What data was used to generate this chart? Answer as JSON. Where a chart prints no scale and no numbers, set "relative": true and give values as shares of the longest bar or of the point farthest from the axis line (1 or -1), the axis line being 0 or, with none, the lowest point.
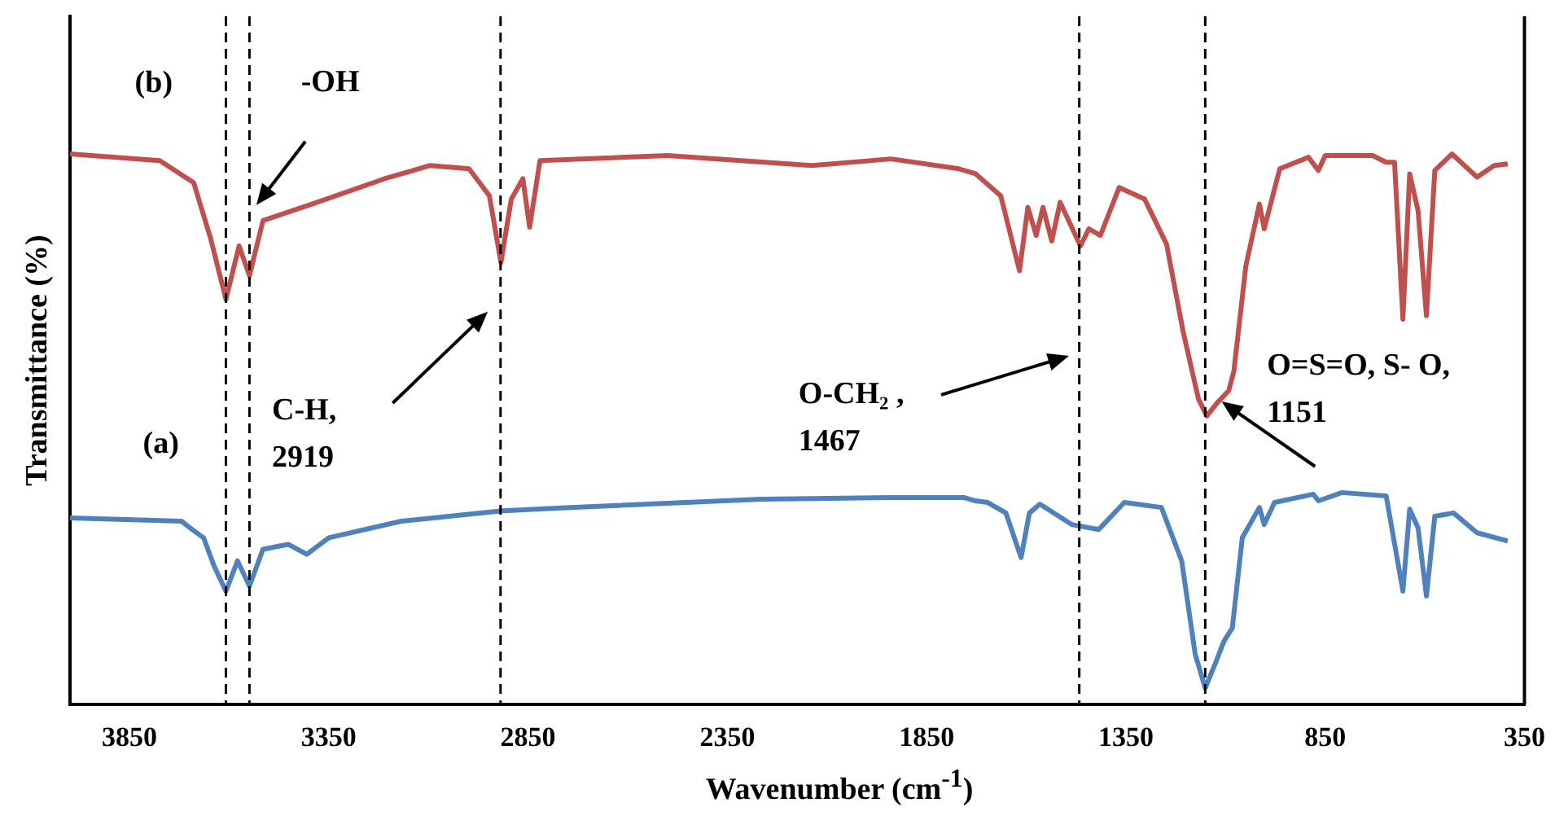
{
  "chart_data": {
    "type": "line",
    "relative": true,
    "xlabel": "Wavenumber (cm$^{-1}$)",
    "ylabel": "Transmittance (%)",
    "xlim": [
      4000,
      350
    ],
    "xticks": [
      3850,
      3350,
      2850,
      2350,
      1850,
      1350,
      850,
      350
    ],
    "grid": false,
    "legend": false,
    "marker": "none",
    "line_style": "solid",
    "series": [
      {
        "name": "(b)",
        "color": "#c0504d",
        "x": [
          4000,
          3774,
          3689,
          3647,
          3608,
          3575,
          3549,
          3515,
          3392,
          3210,
          3096,
          2998,
          2947,
          2918,
          2892,
          2863,
          2846,
          2820,
          2500,
          2138,
          1939,
          1769,
          1727,
          1664,
          1617,
          1596,
          1575,
          1558,
          1536,
          1515,
          1464,
          1443,
          1414,
          1367,
          1303,
          1248,
          1206,
          1168,
          1147,
          1121,
          1092,
          1079,
          1049,
          1015,
          1003,
          964,
          892,
          867,
          850,
          731,
          697,
          676,
          655,
          638,
          617,
          596,
          575,
          532,
          469,
          426,
          392
        ],
        "values": [
          1.0,
          0.988,
          0.948,
          0.848,
          0.736,
          0.833,
          0.779,
          0.879,
          0.909,
          0.955,
          0.979,
          0.973,
          0.924,
          0.803,
          0.918,
          0.955,
          0.867,
          0.988,
          0.997,
          0.979,
          0.991,
          0.973,
          0.964,
          0.924,
          0.788,
          0.903,
          0.852,
          0.903,
          0.842,
          0.912,
          0.833,
          0.864,
          0.852,
          0.939,
          0.918,
          0.836,
          0.676,
          0.555,
          0.524,
          0.548,
          0.57,
          0.606,
          0.797,
          0.909,
          0.864,
          0.973,
          0.994,
          0.97,
          0.997,
          0.997,
          0.985,
          0.985,
          0.7,
          0.964,
          0.897,
          0.706,
          0.97,
          1.0,
          0.958,
          0.979,
          0.982
        ]
      },
      {
        "name": "(a)",
        "color": "#4f81bd",
        "x": [
          4000,
          3719,
          3693,
          3664,
          3638,
          3608,
          3579,
          3549,
          3515,
          3452,
          3405,
          3350,
          3168,
          2914,
          2744,
          2265,
          1939,
          1757,
          1727,
          1697,
          1651,
          1613,
          1592,
          1566,
          1486,
          1418,
          1354,
          1261,
          1210,
          1176,
          1151,
          1125,
          1104,
          1083,
          1058,
          1015,
          1003,
          977,
          880,
          867,
          808,
          697,
          655,
          638,
          617,
          596,
          575,
          528,
          469,
          392
        ],
        "values": [
          0.339,
          0.333,
          0.318,
          0.303,
          0.252,
          0.206,
          0.261,
          0.215,
          0.282,
          0.291,
          0.273,
          0.303,
          0.333,
          0.352,
          0.358,
          0.373,
          0.376,
          0.376,
          0.37,
          0.367,
          0.348,
          0.267,
          0.348,
          0.364,
          0.327,
          0.318,
          0.367,
          0.358,
          0.261,
          0.091,
          0.03,
          0.076,
          0.115,
          0.139,
          0.303,
          0.358,
          0.327,
          0.367,
          0.382,
          0.37,
          0.385,
          0.379,
          0.206,
          0.355,
          0.321,
          0.197,
          0.342,
          0.348,
          0.312,
          0.297
        ]
      }
    ],
    "ref_lines": [
      {
        "axis": "x",
        "value": 3608,
        "color": "#000000",
        "line_style": "dashed"
      },
      {
        "axis": "x",
        "value": 3549,
        "color": "#000000",
        "line_style": "dashed"
      },
      {
        "axis": "x",
        "value": 2919,
        "color": "#000000",
        "line_style": "dashed"
      },
      {
        "axis": "x",
        "value": 1467,
        "color": "#000000",
        "line_style": "dashed"
      },
      {
        "axis": "x",
        "value": 1151,
        "color": "#000000",
        "line_style": "dashed"
      }
    ],
    "annotations": [
      "-OH",
      "C-H,\n2919",
      "O-CH₂ ,\n1467",
      "O=S=O, S- O,\n1151"
    ]
  }
}
